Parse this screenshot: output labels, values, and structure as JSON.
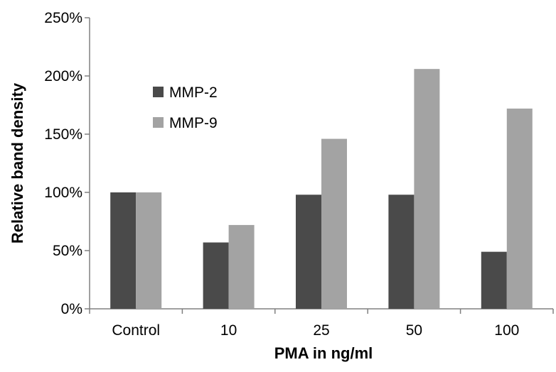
{
  "chart_data": {
    "type": "bar",
    "categories": [
      "Control",
      "10",
      "25",
      "50",
      "100"
    ],
    "series": [
      {
        "name": "MMP-2",
        "values": [
          100,
          57,
          98,
          98,
          49
        ],
        "color": "#4a4a4a"
      },
      {
        "name": "MMP-9",
        "values": [
          100,
          72,
          146,
          206,
          172
        ],
        "color": "#a3a3a3"
      }
    ],
    "title": "",
    "xlabel": "PMA in ng/ml",
    "ylabel": "Relative band density",
    "ylim": [
      0,
      250
    ],
    "yticks": [
      0,
      50,
      100,
      150,
      200,
      250
    ],
    "ytick_labels": [
      "0%",
      "50%",
      "100%",
      "150%",
      "200%",
      "250%"
    ],
    "grid": false,
    "legend_position": "upper-left"
  }
}
